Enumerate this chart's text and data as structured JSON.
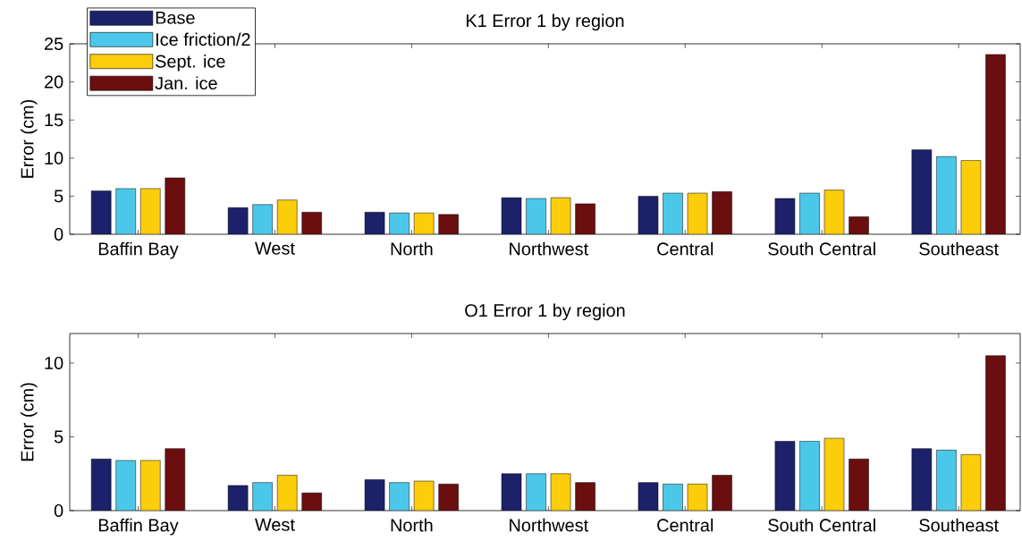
{
  "chart_data": [
    {
      "type": "bar",
      "title": "K1 Error 1 by region",
      "ylabel": "Error (cm)",
      "categories": [
        "Baffin Bay",
        "West",
        "North",
        "Northwest",
        "Central",
        "South Central",
        "Southeast"
      ],
      "series": [
        {
          "name": "Base",
          "color": "#1c216a",
          "values": [
            5.7,
            3.5,
            2.9,
            4.8,
            5.0,
            4.7,
            11.1
          ]
        },
        {
          "name": "Ice friction/2",
          "color": "#4bc8e9",
          "values": [
            6.0,
            3.9,
            2.8,
            4.7,
            5.4,
            5.4,
            10.2
          ]
        },
        {
          "name": "Sept. ice",
          "color": "#fccd0a",
          "values": [
            6.0,
            4.5,
            2.8,
            4.8,
            5.4,
            5.8,
            9.7
          ]
        },
        {
          "name": "Jan. ice",
          "color": "#6b0e10",
          "values": [
            7.4,
            2.9,
            2.6,
            4.0,
            5.6,
            2.3,
            23.6
          ]
        }
      ],
      "ylim": [
        0,
        25
      ],
      "yticks": [
        0,
        5,
        10,
        15,
        20,
        25
      ],
      "legend": "top left",
      "grid": false
    },
    {
      "type": "bar",
      "title": "O1 Error 1 by region",
      "ylabel": "Error (cm)",
      "categories": [
        "Baffin Bay",
        "West",
        "North",
        "Northwest",
        "Central",
        "South Central",
        "Southeast"
      ],
      "series": [
        {
          "color": "#1c216a",
          "values": [
            3.5,
            1.7,
            2.1,
            2.5,
            1.9,
            4.7,
            4.2
          ]
        },
        {
          "color": "#4bc8e9",
          "values": [
            3.4,
            1.9,
            1.9,
            2.5,
            1.8,
            4.7,
            4.1
          ]
        },
        {
          "color": "#fccd0a",
          "values": [
            3.4,
            2.4,
            2.0,
            2.5,
            1.8,
            4.9,
            3.8
          ]
        },
        {
          "color": "#6b0e10",
          "values": [
            4.2,
            1.2,
            1.8,
            1.9,
            2.4,
            3.5,
            10.5
          ]
        }
      ],
      "ylim": [
        0,
        12
      ],
      "yticks": [
        0,
        5,
        10
      ],
      "legend": false,
      "grid": false
    }
  ]
}
